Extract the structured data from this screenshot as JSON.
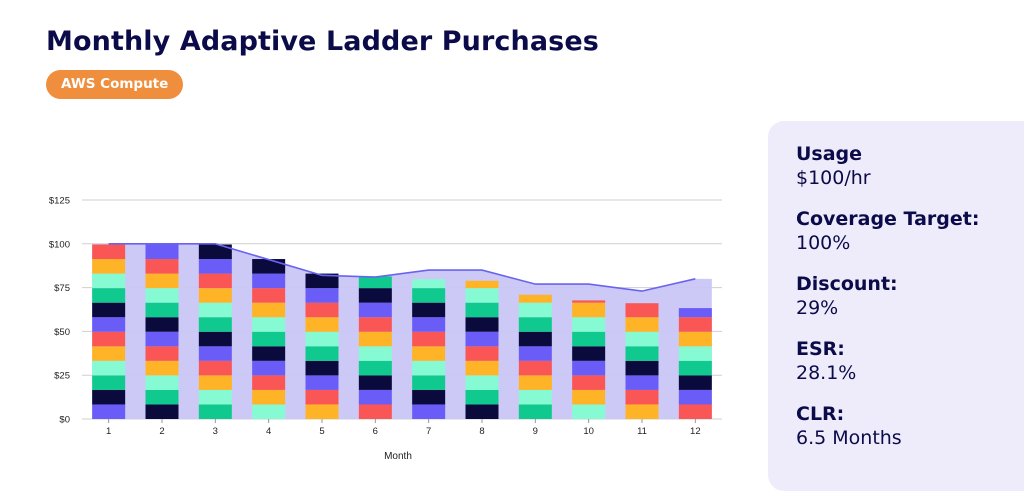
{
  "header": {
    "title": "Monthly Adaptive Ladder Purchases",
    "badge": "AWS Compute"
  },
  "stats": [
    {
      "label": "Usage",
      "value": "$100/hr"
    },
    {
      "label": "Coverage Target:",
      "value": "100%"
    },
    {
      "label": "Discount:",
      "value": "29%"
    },
    {
      "label": "ESR:",
      "value": "28.1%"
    },
    {
      "label": "CLR:",
      "value": "6.5 Months"
    }
  ],
  "colors": {
    "accent": "#ef8f3e",
    "title": "#0c0b4a",
    "panel": "#eeecfb",
    "area": "#c9c6f5",
    "line": "#6a63f0",
    "segments": [
      "#6a5cf7",
      "#0b0a3d",
      "#10c98e",
      "#86fbd3",
      "#ffb428",
      "#fa5656"
    ]
  },
  "chart_data": {
    "type": "bar",
    "xlabel": "Month",
    "ylabel": "",
    "categories": [
      "1",
      "2",
      "3",
      "4",
      "5",
      "6",
      "7",
      "8",
      "9",
      "10",
      "11",
      "12"
    ],
    "ylim": [
      0,
      125
    ],
    "yticks": [
      0,
      25,
      50,
      75,
      100,
      125
    ],
    "ytick_labels": [
      "$0",
      "$25",
      "$50",
      "$75",
      "$100",
      "$125"
    ],
    "grid": true,
    "stacked": true,
    "segment_value": 8.3,
    "stack_totals": [
      100,
      100,
      100,
      91.5,
      83.3,
      81.4,
      79.8,
      78.9,
      70.9,
      67.7,
      66.1,
      63.3
    ],
    "segment_colors": [
      [
        "#6a5cf7",
        "#0b0a3d",
        "#10c98e",
        "#86fbd3",
        "#ffb428",
        "#fa5656",
        "#6a5cf7",
        "#0b0a3d",
        "#10c98e",
        "#86fbd3",
        "#ffb428",
        "#fa5656"
      ],
      [
        "#0b0a3d",
        "#10c98e",
        "#86fbd3",
        "#ffb428",
        "#fa5656",
        "#6a5cf7",
        "#0b0a3d",
        "#10c98e",
        "#86fbd3",
        "#ffb428",
        "#fa5656",
        "#6a5cf7"
      ],
      [
        "#10c98e",
        "#86fbd3",
        "#ffb428",
        "#fa5656",
        "#6a5cf7",
        "#0b0a3d",
        "#10c98e",
        "#86fbd3",
        "#ffb428",
        "#fa5656",
        "#6a5cf7",
        "#0b0a3d"
      ],
      [
        "#86fbd3",
        "#ffb428",
        "#fa5656",
        "#6a5cf7",
        "#0b0a3d",
        "#10c98e",
        "#86fbd3",
        "#ffb428",
        "#fa5656",
        "#6a5cf7",
        "#0b0a3d"
      ],
      [
        "#ffb428",
        "#fa5656",
        "#6a5cf7",
        "#0b0a3d",
        "#10c98e",
        "#86fbd3",
        "#ffb428",
        "#fa5656",
        "#6a5cf7",
        "#0b0a3d"
      ],
      [
        "#fa5656",
        "#6a5cf7",
        "#0b0a3d",
        "#10c98e",
        "#86fbd3",
        "#ffb428",
        "#fa5656",
        "#6a5cf7",
        "#0b0a3d",
        "#10c98e"
      ],
      [
        "#6a5cf7",
        "#0b0a3d",
        "#10c98e",
        "#86fbd3",
        "#ffb428",
        "#fa5656",
        "#6a5cf7",
        "#0b0a3d",
        "#10c98e",
        "#86fbd3"
      ],
      [
        "#0b0a3d",
        "#10c98e",
        "#86fbd3",
        "#ffb428",
        "#fa5656",
        "#6a5cf7",
        "#0b0a3d",
        "#10c98e",
        "#86fbd3",
        "#ffb428"
      ],
      [
        "#10c98e",
        "#86fbd3",
        "#ffb428",
        "#fa5656",
        "#6a5cf7",
        "#0b0a3d",
        "#10c98e",
        "#86fbd3",
        "#ffb428"
      ],
      [
        "#86fbd3",
        "#ffb428",
        "#fa5656",
        "#6a5cf7",
        "#0b0a3d",
        "#10c98e",
        "#86fbd3",
        "#ffb428",
        "#fa5656"
      ],
      [
        "#ffb428",
        "#fa5656",
        "#6a5cf7",
        "#0b0a3d",
        "#10c98e",
        "#86fbd3",
        "#ffb428",
        "#fa5656",
        "#6a5cf7"
      ],
      [
        "#fa5656",
        "#6a5cf7",
        "#0b0a3d",
        "#10c98e",
        "#86fbd3",
        "#ffb428",
        "#fa5656",
        "#6a5cf7",
        "#fff6dc"
      ]
    ],
    "line": {
      "name": "",
      "values": [
        100,
        100,
        100,
        91,
        82,
        81,
        85,
        85,
        77,
        77,
        73,
        80
      ]
    }
  }
}
